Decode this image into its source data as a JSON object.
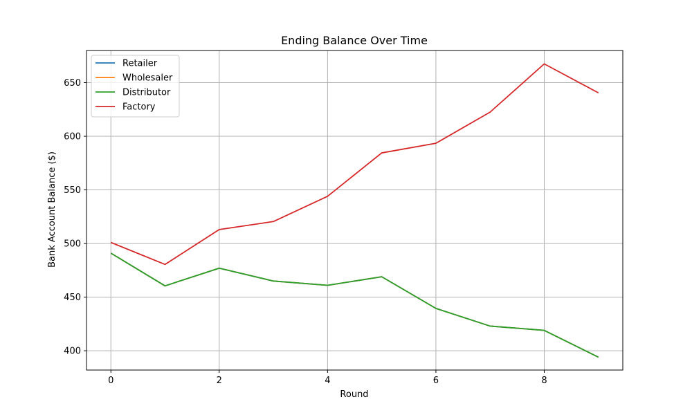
{
  "chart_data": {
    "type": "line",
    "title": "Ending Balance Over Time",
    "xlabel": "Round",
    "ylabel": "Bank Account Balance ($)",
    "x": [
      0,
      1,
      2,
      3,
      4,
      5,
      6,
      7,
      8,
      9
    ],
    "xlim": [
      -0.45,
      9.45
    ],
    "ylim": [
      382,
      680
    ],
    "xticks": [
      0,
      2,
      4,
      6,
      8
    ],
    "yticks": [
      400,
      450,
      500,
      550,
      600,
      650
    ],
    "grid": true,
    "legend_position": "upper-left",
    "series": [
      {
        "name": "Retailer",
        "color": "#1f77b4",
        "values": [
          491,
          460.5,
          477,
          465,
          461,
          469,
          439.5,
          423,
          419,
          394
        ]
      },
      {
        "name": "Wholesaler",
        "color": "#ff7f0e",
        "values": [
          491,
          460.5,
          477,
          465,
          461,
          469,
          439.5,
          423,
          419,
          394
        ]
      },
      {
        "name": "Distributor",
        "color": "#2ca02c",
        "values": [
          491,
          460.5,
          477,
          465,
          461,
          469,
          439.5,
          423,
          419,
          394
        ]
      },
      {
        "name": "Factory",
        "color": "#d62728",
        "values": [
          501,
          480.5,
          513,
          520.5,
          544,
          584.5,
          593.5,
          622.5,
          667.5,
          640.5
        ]
      }
    ]
  }
}
